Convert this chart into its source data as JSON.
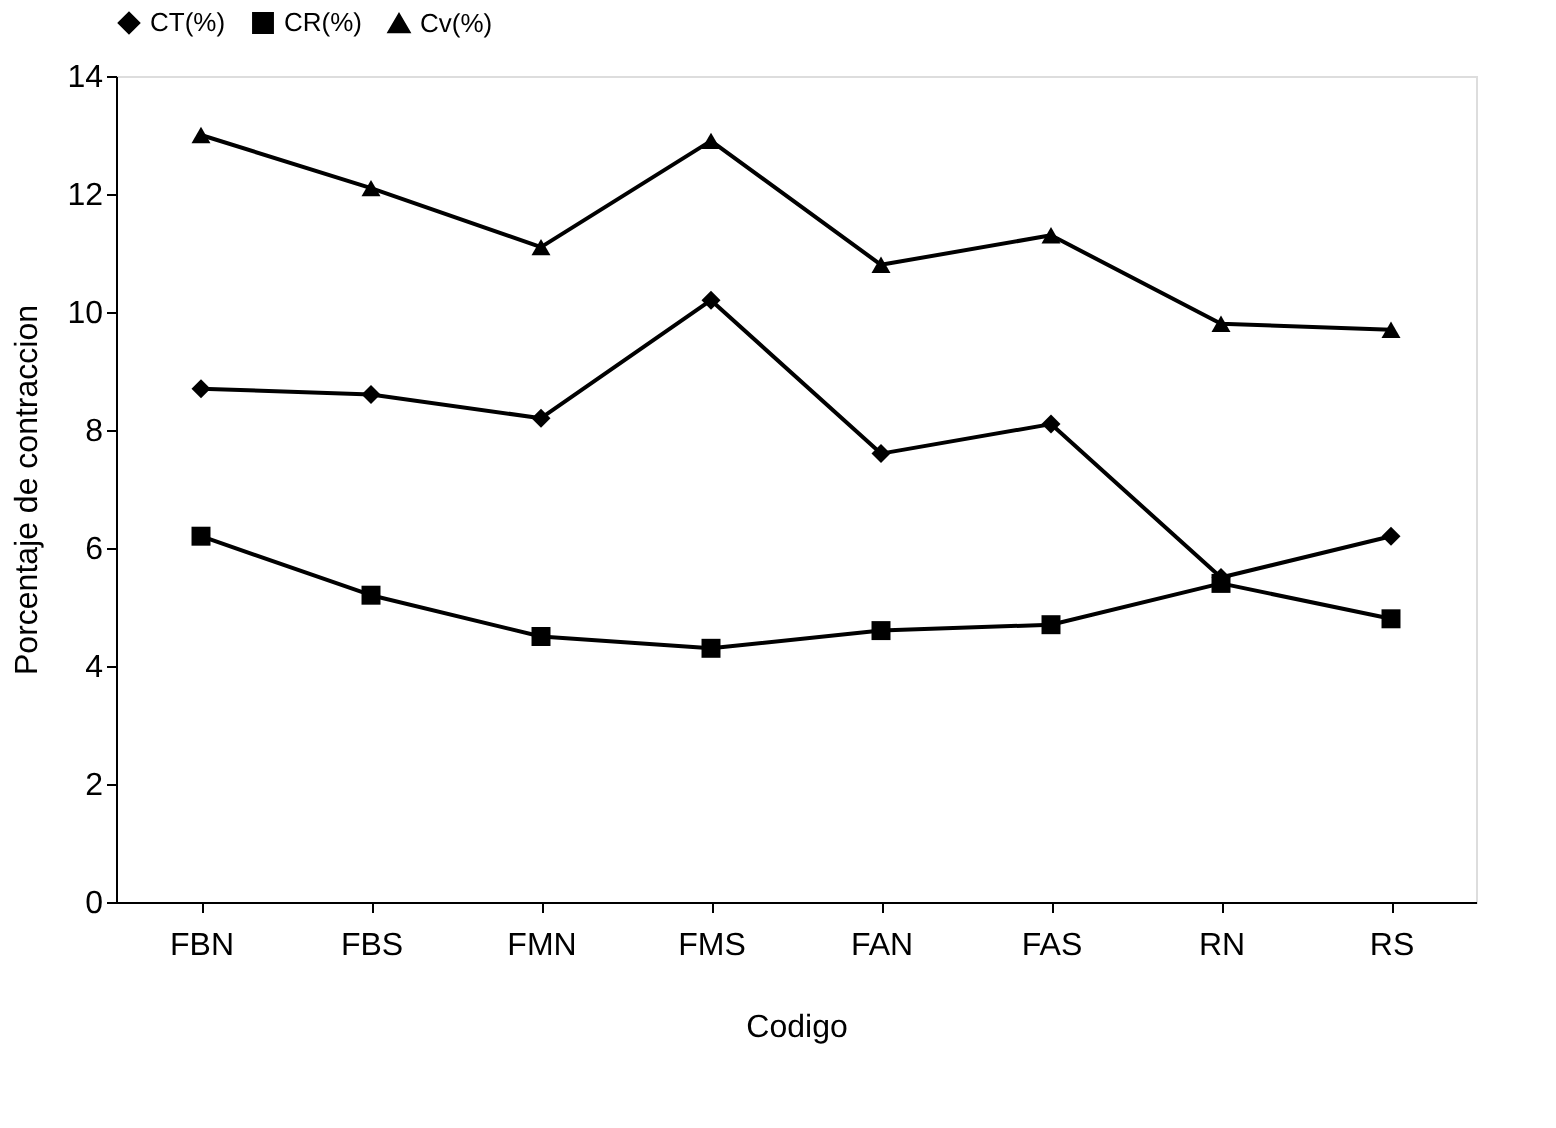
{
  "chart_data": {
    "type": "line",
    "xlabel": "Codigo",
    "ylabel": "Porcentaje de contraccion",
    "categories": [
      "FBN",
      "FBS",
      "FMN",
      "FMS",
      "FAN",
      "FAS",
      "RN",
      "RS"
    ],
    "series": [
      {
        "name": "CT(%)",
        "color": "#000000",
        "marker": "diamond",
        "values": [
          8.7,
          8.6,
          8.2,
          10.2,
          7.6,
          8.1,
          5.5,
          6.2
        ]
      },
      {
        "name": "CR(%)",
        "color": "#000000",
        "marker": "square",
        "values": [
          6.2,
          5.2,
          4.5,
          4.3,
          4.6,
          4.7,
          5.4,
          4.8
        ]
      },
      {
        "name": "Cv(%)",
        "color": "#000000",
        "marker": "triangle",
        "values": [
          13.0,
          12.1,
          11.1,
          12.9,
          10.8,
          11.3,
          9.8,
          9.7
        ]
      }
    ],
    "ylim": [
      0,
      14
    ],
    "yticks": [
      0,
      2,
      4,
      6,
      8,
      10,
      12,
      14
    ],
    "grid": false,
    "legend": "top",
    "line_style": "solid"
  }
}
